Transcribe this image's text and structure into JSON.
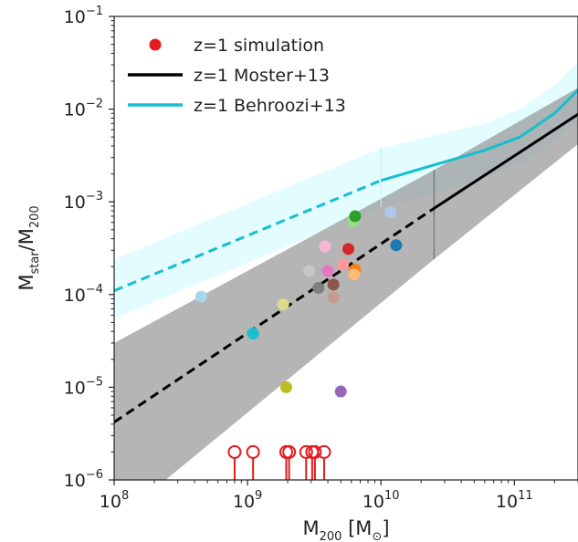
{
  "chart_data": {
    "type": "scatter",
    "x_scale": "log",
    "y_scale": "log",
    "xlim": [
      100000000,
      300000000000
    ],
    "ylim": [
      1e-06,
      0.1
    ],
    "xlabel": {
      "main": "M",
      "sub": "200",
      "rest": " [M",
      "sub2": "⊙",
      "end": "]"
    },
    "ylabel": {
      "main": "M",
      "sub": "star",
      "mid": "/M",
      "sub2": "200"
    },
    "x_ticks": [
      {
        "value": 100000000,
        "base": "10",
        "exp": "8"
      },
      {
        "value": 1000000000,
        "base": "10",
        "exp": "9"
      },
      {
        "value": 10000000000,
        "base": "10",
        "exp": "10"
      },
      {
        "value": 100000000000,
        "base": "10",
        "exp": "11"
      }
    ],
    "y_ticks": [
      {
        "value": 1e-06,
        "base": "10",
        "exp": "−6"
      },
      {
        "value": 1e-05,
        "base": "10",
        "exp": "−5"
      },
      {
        "value": 0.0001,
        "base": "10",
        "exp": "−4"
      },
      {
        "value": 0.001,
        "base": "10",
        "exp": "−3"
      },
      {
        "value": 0.01,
        "base": "10",
        "exp": "−2"
      },
      {
        "value": 0.1,
        "base": "10",
        "exp": "−1"
      }
    ],
    "legend": {
      "placement": "top-left",
      "entries": [
        {
          "label": "z=1 simulation",
          "kind": "marker",
          "color": "#e41a1c"
        },
        {
          "label": "z=1 Moster+13",
          "kind": "line",
          "color": "#000000"
        },
        {
          "label": "z=1 Behroozi+13",
          "kind": "line",
          "color": "#17becf"
        }
      ]
    },
    "moster13": {
      "color": "#000000",
      "band_color": "#999999",
      "line": [
        [
          100000000,
          4.2e-06
        ],
        [
          25000000000,
          0.00085
        ],
        [
          300000000000,
          0.0088
        ]
      ],
      "dashed_below": 25000000000,
      "band_upper": [
        [
          100000000,
          3e-05
        ],
        [
          25000000000,
          0.0022
        ],
        [
          300000000000,
          0.017
        ]
      ],
      "band_lower": [
        [
          100000000,
          3.5e-07
        ],
        [
          25000000000,
          0.00024
        ],
        [
          300000000000,
          0.0042
        ]
      ],
      "marker_line_x": 25000000000
    },
    "behroozi13": {
      "color": "#17becf",
      "band_color": "#dffcff",
      "line": [
        [
          100000000,
          0.00011
        ],
        [
          10000000000,
          0.0017
        ],
        [
          25000000000,
          0.0025
        ],
        [
          60000000000,
          0.0036
        ],
        [
          110000000000,
          0.005
        ],
        [
          200000000000,
          0.009
        ],
        [
          300000000000,
          0.016
        ]
      ],
      "dashed_below": 10000000000,
      "band_upper": [
        [
          100000000,
          0.00024
        ],
        [
          10000000000,
          0.0038
        ],
        [
          25000000000,
          0.0052
        ],
        [
          60000000000,
          0.007
        ],
        [
          110000000000,
          0.01
        ],
        [
          200000000000,
          0.018
        ],
        [
          300000000000,
          0.032
        ]
      ],
      "band_lower": [
        [
          100000000,
          5.5e-05
        ],
        [
          10000000000,
          0.00088
        ],
        [
          25000000000,
          0.0012
        ],
        [
          60000000000,
          0.0018
        ],
        [
          110000000000,
          0.0025
        ],
        [
          200000000000,
          0.0045
        ],
        [
          300000000000,
          0.0078
        ]
      ],
      "marker_line_x": 10000000000
    },
    "simulation_points": [
      {
        "x": 450000000,
        "y": 9.5e-05,
        "color": "#a6d8ea"
      },
      {
        "x": 1100000000,
        "y": 3.8e-05,
        "color": "#17becf"
      },
      {
        "x": 1850000000,
        "y": 7.8e-05,
        "color": "#dbdb8d"
      },
      {
        "x": 1950000000,
        "y": 1e-05,
        "color": "#bcbd22"
      },
      {
        "x": 2900000000,
        "y": 0.00018,
        "color": "#c7c7c7"
      },
      {
        "x": 3400000000,
        "y": 0.000118,
        "color": "#7f7f7f"
      },
      {
        "x": 3800000000,
        "y": 0.00033,
        "color": "#f7b6d2"
      },
      {
        "x": 4000000000,
        "y": 0.00018,
        "color": "#e377c2"
      },
      {
        "x": 4400000000,
        "y": 0.000128,
        "color": "#8c564b"
      },
      {
        "x": 4400000000,
        "y": 9.3e-05,
        "color": "#c49c94"
      },
      {
        "x": 5000000000,
        "y": 9e-06,
        "color": "#9467bd"
      },
      {
        "x": 5200000000,
        "y": 0.00021,
        "color": "#ff9896"
      },
      {
        "x": 5700000000,
        "y": 0.00031,
        "color": "#d62728"
      },
      {
        "x": 6200000000,
        "y": 0.00062,
        "color": "#98df8a"
      },
      {
        "x": 6400000000,
        "y": 0.0007,
        "color": "#2ca02c"
      },
      {
        "x": 6400000000,
        "y": 0.000185,
        "color": "#ff7f0e"
      },
      {
        "x": 6300000000,
        "y": 0.000165,
        "color": "#ffbb78"
      },
      {
        "x": 11800000000,
        "y": 0.00077,
        "color": "#aec7e8"
      },
      {
        "x": 13000000000,
        "y": 0.00034,
        "color": "#1f77b4"
      }
    ],
    "upper_limits": {
      "color": "#e41a1c",
      "y": 2e-06,
      "x_values": [
        800000000,
        1100000000,
        1950000000,
        2050000000,
        2750000000,
        3050000000,
        3200000000,
        3750000000
      ]
    },
    "grid": false
  }
}
